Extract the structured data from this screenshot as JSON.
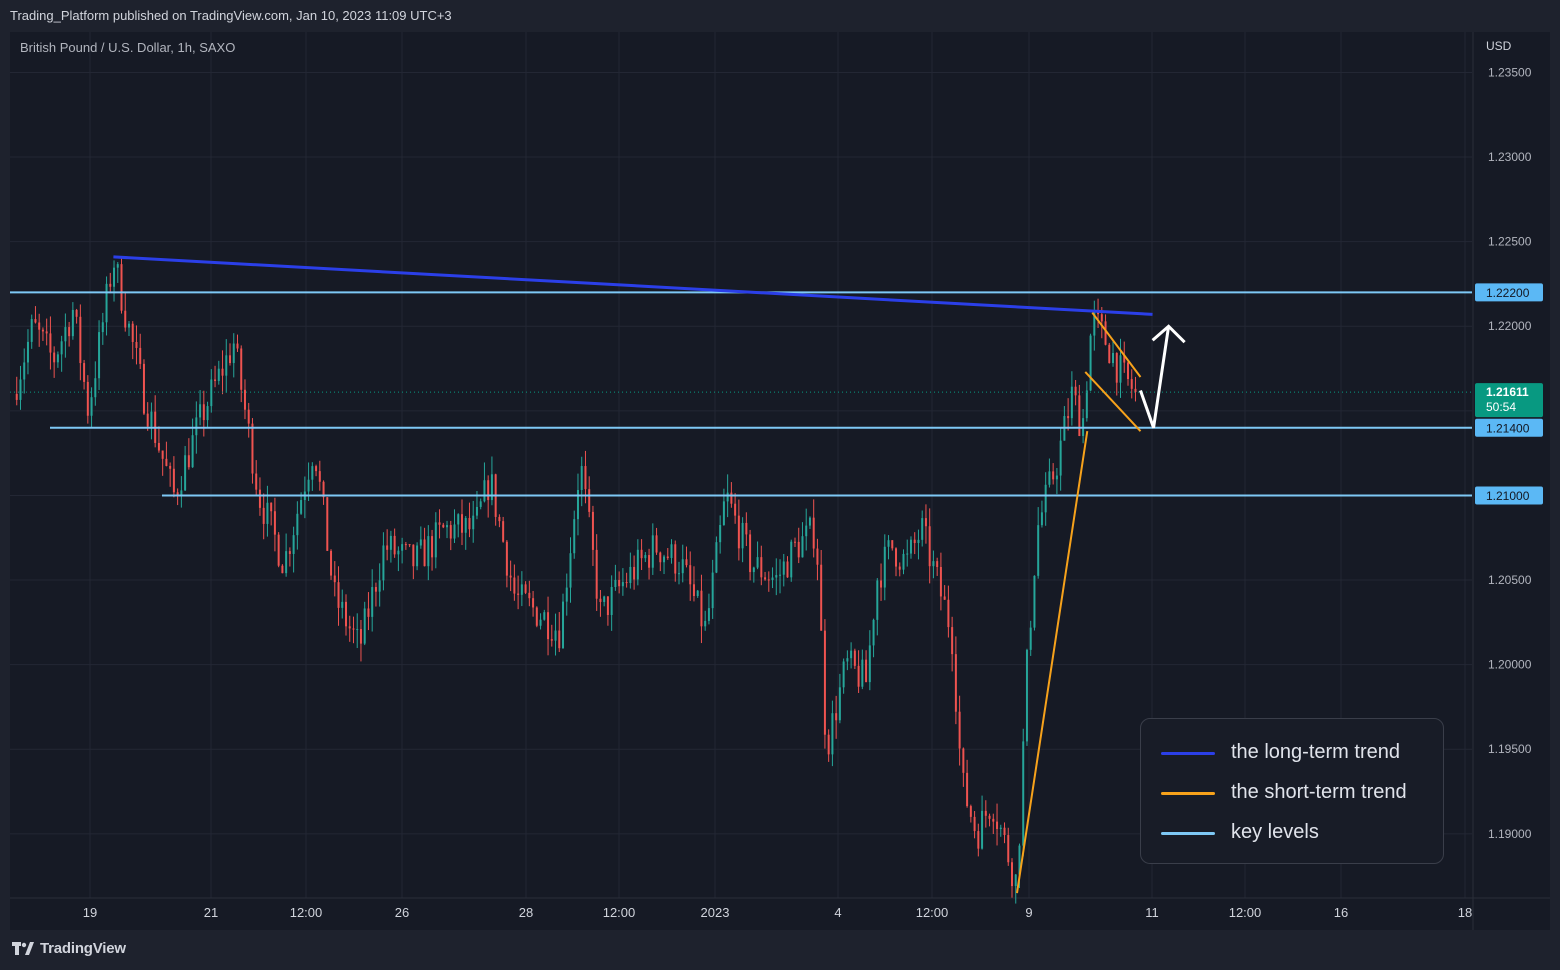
{
  "header": {
    "published_text": "Trading_Platform published on TradingView.com, Jan 10, 2023 11:09 UTC+3"
  },
  "footer": {
    "brand": "TradingView"
  },
  "chart_data": {
    "type": "candlestick",
    "symbol_title": "British Pound / U.S. Dollar, 1h, SAXO",
    "currency": "USD",
    "y_range": [
      1.186,
      1.2355
    ],
    "y_ticks": [
      "1.23500",
      "1.23000",
      "1.22500",
      "1.22000",
      "1.21500",
      "1.21000",
      "1.20500",
      "1.20000",
      "1.19500",
      "1.19000"
    ],
    "x_ticks": [
      "19",
      "21",
      "12:00",
      "26",
      "28",
      "12:00",
      "2023",
      "4",
      "12:00",
      "9",
      "11",
      "12:00",
      "16",
      "18"
    ],
    "price_path": [
      [
        0,
        1.216
      ],
      [
        0.02,
        1.22
      ],
      [
        0.04,
        1.218
      ],
      [
        0.06,
        1.221
      ],
      [
        0.075,
        1.215
      ],
      [
        0.1,
        1.224
      ],
      [
        0.13,
        1.216
      ],
      [
        0.16,
        1.21
      ],
      [
        0.19,
        1.215
      ],
      [
        0.22,
        1.219
      ],
      [
        0.245,
        1.21
      ],
      [
        0.27,
        1.206
      ],
      [
        0.3,
        1.213
      ],
      [
        0.32,
        1.204
      ],
      [
        0.345,
        1.201
      ],
      [
        0.37,
        1.207
      ],
      [
        0.4,
        1.206
      ],
      [
        0.43,
        1.208
      ],
      [
        0.46,
        1.208
      ],
      [
        0.475,
        1.211
      ],
      [
        0.5,
        1.204
      ],
      [
        0.525,
        1.203
      ],
      [
        0.545,
        1.202
      ],
      [
        0.565,
        1.212
      ],
      [
        0.585,
        1.203
      ],
      [
        0.61,
        1.205
      ],
      [
        0.64,
        1.207
      ],
      [
        0.665,
        1.206
      ],
      [
        0.69,
        1.202
      ],
      [
        0.71,
        1.21
      ],
      [
        0.735,
        1.206
      ],
      [
        0.76,
        1.205
      ],
      [
        0.78,
        1.207
      ],
      [
        0.8,
        1.208
      ],
      [
        0.81,
        1.195
      ],
      [
        0.83,
        1.2
      ],
      [
        0.85,
        1.199
      ],
      [
        0.86,
        1.205
      ],
      [
        0.875,
        1.207
      ],
      [
        0.89,
        1.206
      ],
      [
        0.905,
        1.208
      ],
      [
        0.92,
        1.205
      ],
      [
        0.935,
        1.202
      ],
      [
        0.945,
        1.193
      ],
      [
        0.96,
        1.19
      ],
      [
        0.975,
        1.192
      ],
      [
        0.99,
        1.189
      ],
      [
        1.0,
        1.187
      ],
      [
        1.01,
        1.2
      ],
      [
        1.02,
        1.208
      ],
      [
        1.04,
        1.212
      ],
      [
        1.055,
        1.216
      ],
      [
        1.065,
        1.214
      ],
      [
        1.075,
        1.2205
      ],
      [
        1.09,
        1.219
      ],
      [
        1.105,
        1.217
      ],
      [
        1.118,
        1.2161
      ]
    ],
    "last_price": 1.21611,
    "last_price_label": "1.21611",
    "countdown": "50:54",
    "key_levels": [
      {
        "price": 1.222,
        "label": "1.22200"
      },
      {
        "price": 1.214,
        "label": "1.21400"
      },
      {
        "price": 1.21,
        "label": "1.21000"
      }
    ],
    "long_term_trend": {
      "from": [
        0.1,
        1.2241
      ],
      "to": [
        1.135,
        1.2207
      ]
    },
    "short_term_trend": [
      {
        "from": [
          1.0,
          1.1865
        ],
        "to": [
          1.07,
          1.2138
        ]
      },
      {
        "from": [
          1.075,
          1.2208
        ],
        "to": [
          1.123,
          1.217
        ]
      },
      {
        "from": [
          1.068,
          1.2173
        ],
        "to": [
          1.123,
          1.2138
        ]
      }
    ],
    "projection_arrow": [
      [
        1.123,
        1.2162
      ],
      [
        1.136,
        1.214
      ],
      [
        1.151,
        1.22
      ]
    ],
    "colors": {
      "up": "#26a69a",
      "down": "#ef5350",
      "long_term": "#2b3fe8",
      "short_term": "#f7a21b",
      "key_level": "#7ec8f5",
      "last_price": "#089981",
      "label_bg": "#5bb8f5"
    },
    "legend": [
      {
        "label": "the long-term trend",
        "color": "#2b3fe8"
      },
      {
        "label": "the short-term trend",
        "color": "#f7a21b"
      },
      {
        "label": "key levels",
        "color": "#7ec8f5"
      }
    ],
    "legend_position": "bottom-right"
  }
}
